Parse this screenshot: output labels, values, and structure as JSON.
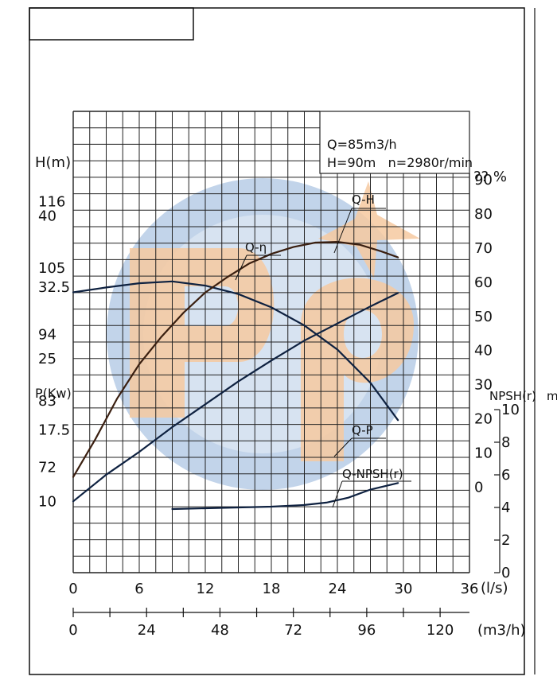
{
  "watermark": {
    "text": "pp",
    "blue": "#8fb0d9",
    "orange": "#f6c9a0"
  },
  "info": {
    "line1": "Q=85m3/h",
    "line2": "H=90m   n=2980r/min"
  },
  "chart_data": {
    "type": "line",
    "x_axis": {
      "label": "(l/s)",
      "ticks": [
        "0",
        "6",
        "12",
        "18",
        "24",
        "30",
        "36"
      ],
      "range": [
        0,
        36
      ]
    },
    "x_axis_secondary": {
      "label": "(m3/h)",
      "ticks": [
        "0",
        "24",
        "48",
        "72",
        "96",
        "120"
      ],
      "range": [
        0,
        129.6
      ]
    },
    "axes": {
      "head": {
        "label": "H(m)",
        "ticks": [
          "116",
          "105",
          "94",
          "83",
          "72"
        ],
        "range": [
          54.5,
          131
        ]
      },
      "power": {
        "label": "P(Kw)",
        "ticks": [
          "40",
          "32.5",
          "25",
          "17.5",
          "10"
        ],
        "range": [
          2.5,
          51
        ]
      },
      "efficiency": {
        "label": "?? %",
        "ticks": [
          "90",
          "80",
          "70",
          "60",
          "50",
          "40",
          "30",
          "20",
          "10",
          "0"
        ],
        "range": [
          -25,
          110
        ]
      },
      "npsh": {
        "label": "NPSH(r)",
        "unit": "m",
        "ticks": [
          "10",
          "8",
          "6",
          "4",
          "2",
          "0"
        ],
        "range": [
          0,
          10
        ]
      }
    },
    "series": [
      {
        "name": "Q-H",
        "axis": "head",
        "color": "#0e2140",
        "points": [
          [
            0,
            101
          ],
          [
            3,
            101.8
          ],
          [
            6,
            102.5
          ],
          [
            9,
            102.8
          ],
          [
            12,
            102.1
          ],
          [
            15,
            100.7
          ],
          [
            18,
            98.5
          ],
          [
            21,
            95.5
          ],
          [
            24,
            91.5
          ],
          [
            27,
            86
          ],
          [
            29.5,
            79.8
          ]
        ]
      },
      {
        "name": "Q-η",
        "axis": "efficiency",
        "color": "#3a1f10",
        "points": [
          [
            0,
            3
          ],
          [
            2,
            14
          ],
          [
            4,
            26
          ],
          [
            6,
            36
          ],
          [
            8,
            44
          ],
          [
            10,
            51
          ],
          [
            12,
            57
          ],
          [
            14,
            61.5
          ],
          [
            16,
            65.5
          ],
          [
            18,
            68.3
          ],
          [
            20,
            70.3
          ],
          [
            22,
            71.6
          ],
          [
            24,
            71.8
          ],
          [
            26,
            71
          ],
          [
            28,
            69
          ],
          [
            29.5,
            67.3
          ]
        ]
      },
      {
        "name": "Q-P",
        "axis": "power",
        "color": "#0e2140",
        "points": [
          [
            0,
            10
          ],
          [
            3,
            12.8
          ],
          [
            6,
            15.2
          ],
          [
            9,
            17.8
          ],
          [
            12,
            20.2
          ],
          [
            15,
            22.6
          ],
          [
            18,
            24.8
          ],
          [
            21,
            26.9
          ],
          [
            24,
            28.7
          ],
          [
            27,
            30.5
          ],
          [
            29.5,
            31.9
          ]
        ]
      },
      {
        "name": "Q-NPSH(r)",
        "axis": "npsh",
        "color": "#0e2140",
        "points": [
          [
            9,
            3.9
          ],
          [
            12,
            3.95
          ],
          [
            15,
            4.0
          ],
          [
            18,
            4.05
          ],
          [
            21,
            4.15
          ],
          [
            23,
            4.3
          ],
          [
            25,
            4.6
          ],
          [
            27,
            5.1
          ],
          [
            29.5,
            5.5
          ]
        ]
      }
    ]
  }
}
